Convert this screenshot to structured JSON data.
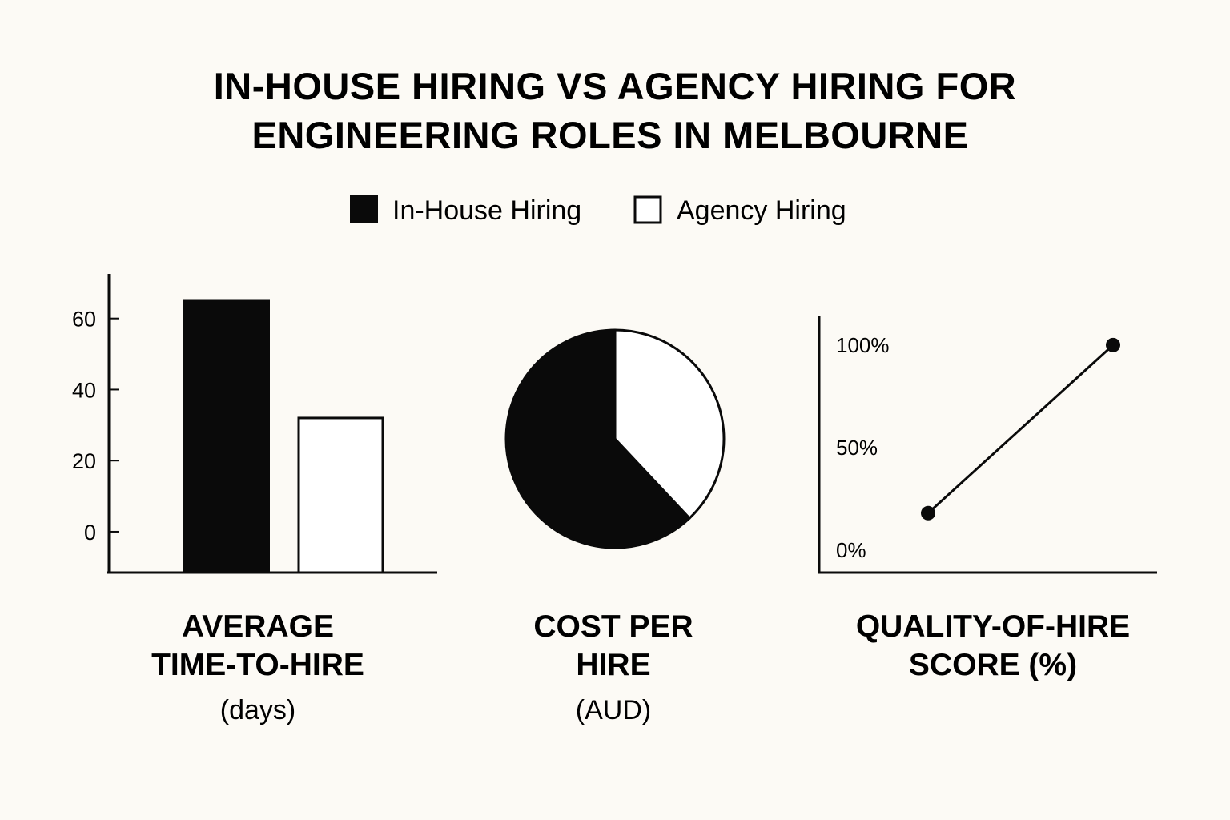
{
  "title_lines": [
    "IN-HOUSE HIRING VS AGENCY HIRING FOR",
    "ENGINEERING ROLES IN MELBOURNE"
  ],
  "legend": [
    {
      "label": "In-House Hiring",
      "fill": "#0a0a0a"
    },
    {
      "label": "Agency Hiring",
      "fill": "#ffffff"
    }
  ],
  "colors": {
    "ink": "#0a0a0a",
    "background": "#fcfaf5",
    "light": "#ffffff"
  },
  "chart_data": [
    {
      "type": "bar",
      "caption": {
        "lines": [
          "AVERAGE",
          "TIME-TO-HIRE"
        ],
        "unit": "(days)"
      },
      "categories": [
        "In-House Hiring",
        "Agency Hiring"
      ],
      "values": [
        65,
        32
      ],
      "yticks": [
        0,
        20,
        40,
        60
      ],
      "ylim": [
        -11.5,
        73
      ],
      "grid": false
    },
    {
      "type": "pie",
      "caption": {
        "lines": [
          "COST PER",
          "HIRE"
        ],
        "unit": "(AUD)"
      },
      "slices": [
        {
          "name": "In-House Hiring",
          "share": 0.62
        },
        {
          "name": "Agency Hiring",
          "share": 0.38
        }
      ]
    },
    {
      "type": "line",
      "caption": {
        "lines": [
          "QUALITY-OF-HIRE",
          "SCORE (%)"
        ],
        "unit": ""
      },
      "yticks": [
        "0%",
        "50%",
        "100%"
      ],
      "ylim": [
        -11,
        114
      ],
      "points": [
        {
          "name": "In-House Hiring",
          "y": 18
        },
        {
          "name": "Agency Hiring",
          "y": 100
        }
      ],
      "grid": false
    }
  ]
}
